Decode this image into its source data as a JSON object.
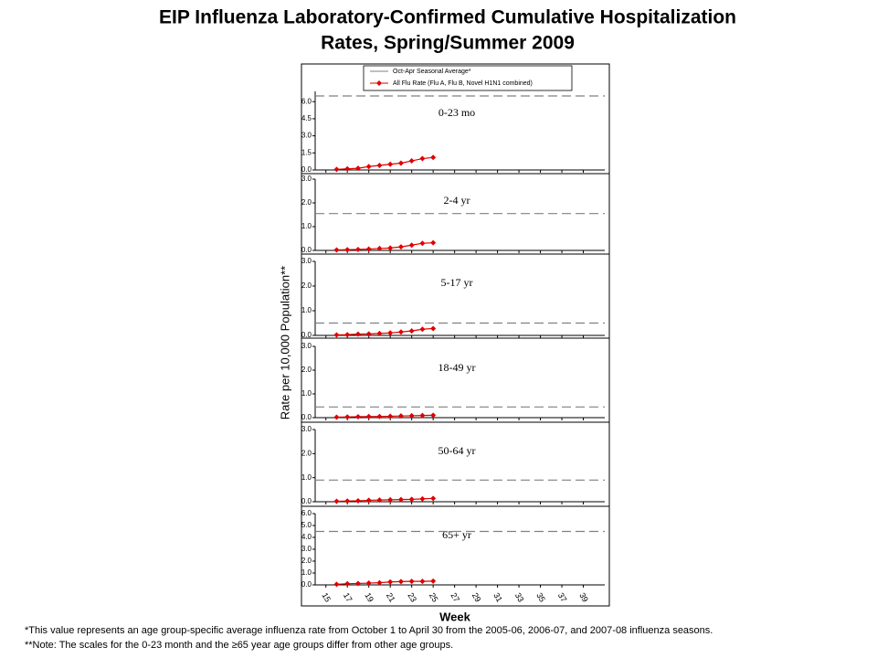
{
  "title_line1": "EIP Influenza Laboratory-Confirmed Cumulative Hospitalization",
  "title_line2": "Rates, Spring/Summer 2009",
  "y_label": "Rate per 10,000 Population**",
  "x_label": "Week",
  "legend": {
    "average": "Oct-Apr Seasonal Average*",
    "rate": "All Flu Rate (Flu A, Flu B, Novel H1N1 combined)"
  },
  "footnotes": [
    "*This value represents an age group-specific average influenza rate from October 1 to April 30 from the 2005-06, 2006-07, and 2007-08 influenza seasons.",
    "**Note: The scales for the 0-23 month and the ≥65 year age groups differ from other age groups."
  ],
  "x_axis": {
    "xlim": [
      14,
      41
    ],
    "xticks": [
      15,
      17,
      19,
      21,
      23,
      25,
      27,
      29,
      31,
      33,
      35,
      37,
      39
    ]
  },
  "chart_data": [
    {
      "type": "line",
      "title": "0-23 mo",
      "x": [
        16,
        17,
        18,
        19,
        20,
        21,
        22,
        23,
        24,
        25
      ],
      "values": [
        0.05,
        0.1,
        0.15,
        0.3,
        0.4,
        0.5,
        0.6,
        0.8,
        1.0,
        1.1
      ],
      "color": "#e00000",
      "average": 6.5,
      "average_color": "#808080",
      "ylim": [
        0,
        6.9
      ],
      "yticks": [
        {
          "value": 0,
          "label": "0.0"
        },
        {
          "value": 1.5,
          "label": "1.5"
        },
        {
          "value": 3,
          "label": "3.0"
        },
        {
          "value": 4.5,
          "label": "4.5"
        },
        {
          "value": 6,
          "label": "6.0"
        }
      ]
    },
    {
      "type": "line",
      "title": "2-4 yr",
      "x": [
        16,
        17,
        18,
        19,
        20,
        21,
        22,
        23,
        24,
        25
      ],
      "values": [
        0.02,
        0.03,
        0.04,
        0.06,
        0.08,
        0.1,
        0.15,
        0.22,
        0.3,
        0.32
      ],
      "color": "#e00000",
      "average": 1.55,
      "average_color": "#808080",
      "ylim": [
        0,
        3
      ],
      "yticks": [
        {
          "value": 0,
          "label": "0.0"
        },
        {
          "value": 1,
          "label": "1.0"
        },
        {
          "value": 2,
          "label": "2.0"
        },
        {
          "value": 3,
          "label": "3.0"
        }
      ]
    },
    {
      "type": "line",
      "title": "5-17 yr",
      "x": [
        16,
        17,
        18,
        19,
        20,
        21,
        22,
        23,
        24,
        25
      ],
      "values": [
        0.02,
        0.03,
        0.05,
        0.06,
        0.08,
        0.1,
        0.14,
        0.18,
        0.25,
        0.28
      ],
      "color": "#e00000",
      "average": 0.5,
      "average_color": "#808080",
      "ylim": [
        0,
        3
      ],
      "yticks": [
        {
          "value": 0,
          "label": "0.0"
        },
        {
          "value": 1,
          "label": "1.0"
        },
        {
          "value": 2,
          "label": "2.0"
        },
        {
          "value": 3,
          "label": "3.0"
        }
      ]
    },
    {
      "type": "line",
      "title": "18-49 yr",
      "x": [
        16,
        17,
        18,
        19,
        20,
        21,
        22,
        23,
        24,
        25
      ],
      "values": [
        0.02,
        0.03,
        0.04,
        0.05,
        0.05,
        0.06,
        0.07,
        0.08,
        0.09,
        0.1
      ],
      "color": "#e00000",
      "average": 0.45,
      "average_color": "#808080",
      "ylim": [
        0,
        3
      ],
      "yticks": [
        {
          "value": 0,
          "label": "0.0"
        },
        {
          "value": 1,
          "label": "1.0"
        },
        {
          "value": 2,
          "label": "2.0"
        },
        {
          "value": 3,
          "label": "3.0"
        }
      ]
    },
    {
      "type": "line",
      "title": "50-64 yr",
      "x": [
        16,
        17,
        18,
        19,
        20,
        21,
        22,
        23,
        24,
        25
      ],
      "values": [
        0.02,
        0.03,
        0.04,
        0.06,
        0.07,
        0.08,
        0.09,
        0.1,
        0.12,
        0.14
      ],
      "color": "#e00000",
      "average": 0.9,
      "average_color": "#808080",
      "ylim": [
        0,
        3
      ],
      "yticks": [
        {
          "value": 0,
          "label": "0.0"
        },
        {
          "value": 1,
          "label": "1.0"
        },
        {
          "value": 2,
          "label": "2.0"
        },
        {
          "value": 3,
          "label": "3.0"
        }
      ]
    },
    {
      "type": "line",
      "title": "65+ yr",
      "x": [
        16,
        17,
        18,
        19,
        20,
        21,
        22,
        23,
        24,
        25
      ],
      "values": [
        0.05,
        0.1,
        0.12,
        0.15,
        0.18,
        0.25,
        0.28,
        0.3,
        0.3,
        0.32
      ],
      "color": "#e00000",
      "average": 4.5,
      "average_color": "#808080",
      "ylim": [
        0,
        6
      ],
      "yticks": [
        {
          "value": 0,
          "label": "0.0"
        },
        {
          "value": 1,
          "label": "1.0"
        },
        {
          "value": 2,
          "label": "2.0"
        },
        {
          "value": 3,
          "label": "3.0"
        },
        {
          "value": 4,
          "label": "4.0"
        },
        {
          "value": 5,
          "label": "5.0"
        },
        {
          "value": 6,
          "label": "6.0"
        }
      ]
    }
  ]
}
